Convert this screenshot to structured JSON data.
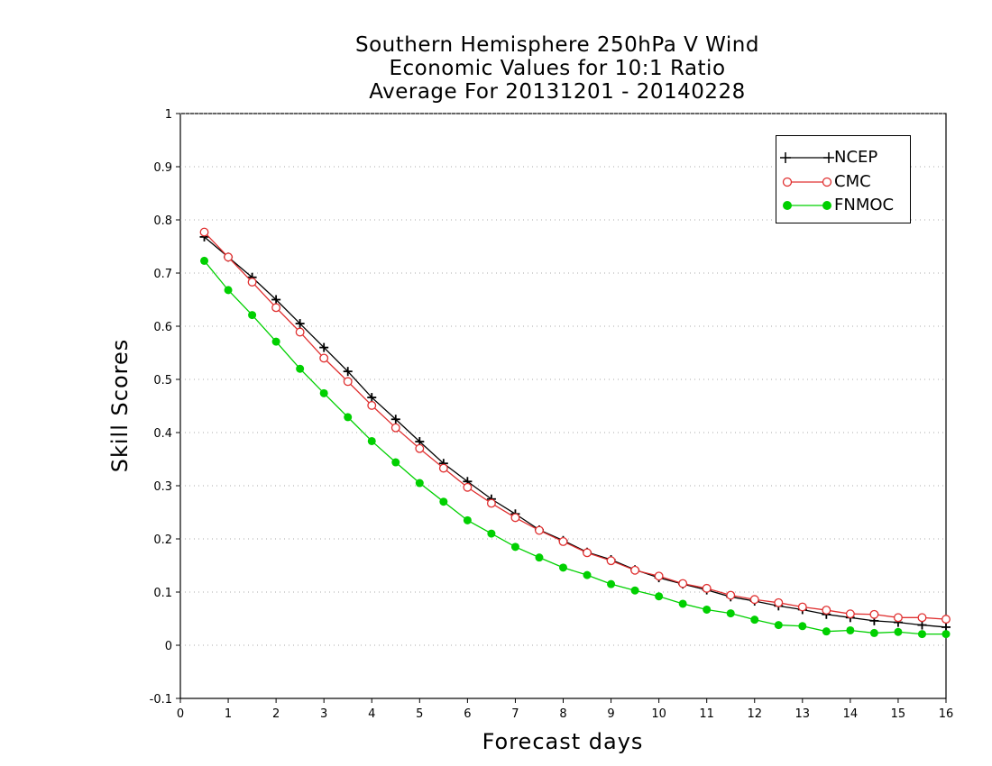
{
  "chart_data": {
    "type": "line",
    "title": [
      "Southern Hemisphere 250hPa V Wind",
      "Economic Values for 10:1 Ratio",
      "Average For 20131201 - 20140228"
    ],
    "xlabel": "Forecast days",
    "ylabel": "Skill Scores",
    "xlim": [
      0,
      16
    ],
    "ylim": [
      -0.1,
      1
    ],
    "xticks": [
      "0",
      "1",
      "2",
      "3",
      "4",
      "5",
      "6",
      "7",
      "8",
      "9",
      "10",
      "11",
      "12",
      "13",
      "14",
      "15",
      "16"
    ],
    "yticks": [
      "-0.1",
      "0",
      "0.1",
      "0.2",
      "0.3",
      "0.4",
      "0.5",
      "0.6",
      "0.7",
      "0.8",
      "0.9",
      "1"
    ],
    "grid": "horizontal-dotted",
    "legend_position": "top-right",
    "x": [
      0.5,
      1,
      1.5,
      2,
      2.5,
      3,
      3.5,
      4,
      4.5,
      5,
      5.5,
      6,
      6.5,
      7,
      7.5,
      8,
      8.5,
      9,
      9.5,
      10,
      10.5,
      11,
      11.5,
      12,
      12.5,
      13,
      13.5,
      14,
      14.5,
      15,
      15.5,
      16
    ],
    "series": [
      {
        "name": "NCEP",
        "color": "#000000",
        "marker": "plus",
        "values": [
          0.768,
          0.73,
          0.692,
          0.65,
          0.605,
          0.56,
          0.515,
          0.466,
          0.425,
          0.383,
          0.342,
          0.308,
          0.275,
          0.247,
          0.217,
          0.197,
          0.175,
          0.161,
          0.142,
          0.127,
          0.115,
          0.104,
          0.091,
          0.083,
          0.074,
          0.067,
          0.058,
          0.052,
          0.046,
          0.043,
          0.038,
          0.034
        ]
      },
      {
        "name": "CMC",
        "color": "#e03030",
        "marker": "open-circle",
        "values": [
          0.777,
          0.73,
          0.683,
          0.635,
          0.589,
          0.54,
          0.496,
          0.451,
          0.409,
          0.37,
          0.333,
          0.297,
          0.267,
          0.24,
          0.216,
          0.195,
          0.174,
          0.159,
          0.141,
          0.13,
          0.116,
          0.107,
          0.094,
          0.086,
          0.08,
          0.072,
          0.066,
          0.059,
          0.058,
          0.052,
          0.052,
          0.049
        ]
      },
      {
        "name": "FNMOC",
        "color": "#00d000",
        "marker": "filled-circle",
        "values": [
          0.723,
          0.668,
          0.621,
          0.571,
          0.52,
          0.474,
          0.429,
          0.384,
          0.344,
          0.305,
          0.27,
          0.235,
          0.21,
          0.185,
          0.165,
          0.146,
          0.132,
          0.115,
          0.103,
          0.092,
          0.078,
          0.067,
          0.06,
          0.048,
          0.038,
          0.036,
          0.026,
          0.028,
          0.023,
          0.025,
          0.021,
          0.021
        ]
      }
    ]
  }
}
